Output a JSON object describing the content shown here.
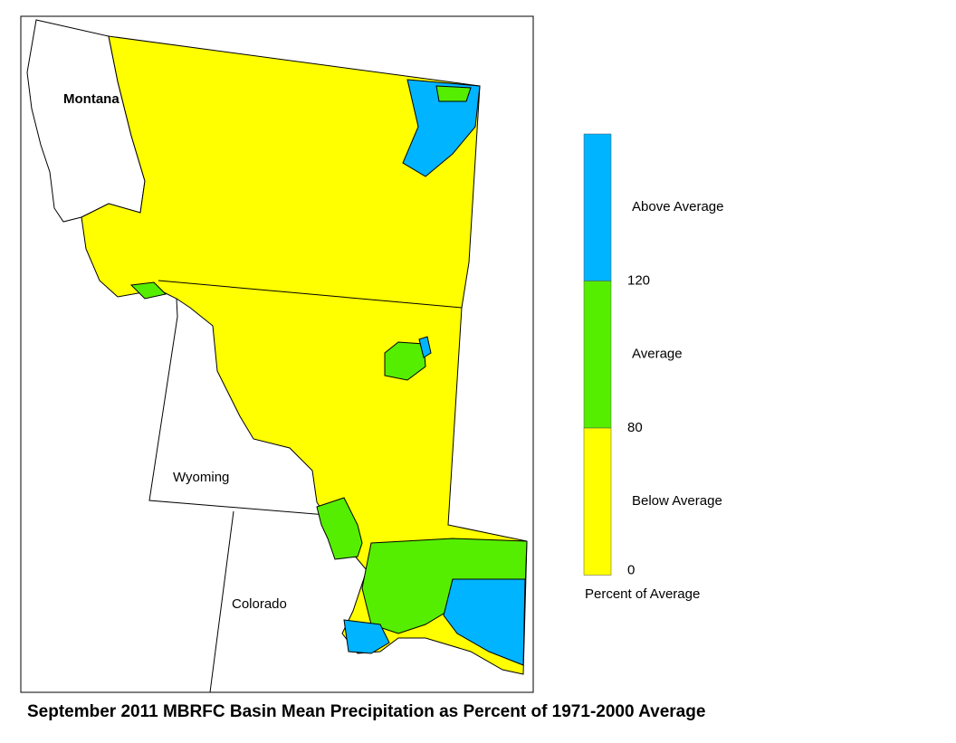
{
  "map": {
    "title": "September 2011 MBRFC Basin Mean Precipitation as Percent of 1971-2000 Average",
    "state_labels": [
      "Montana",
      "Wyoming",
      "Colorado"
    ]
  },
  "legend": {
    "caption": "Percent of Average",
    "categories": [
      {
        "label": "Above Average",
        "color": "#00b4ff"
      },
      {
        "label": "Average",
        "color": "#55ee00"
      },
      {
        "label": "Below Average",
        "color": "#ffff00"
      }
    ],
    "ticks": [
      120,
      80,
      0
    ]
  }
}
